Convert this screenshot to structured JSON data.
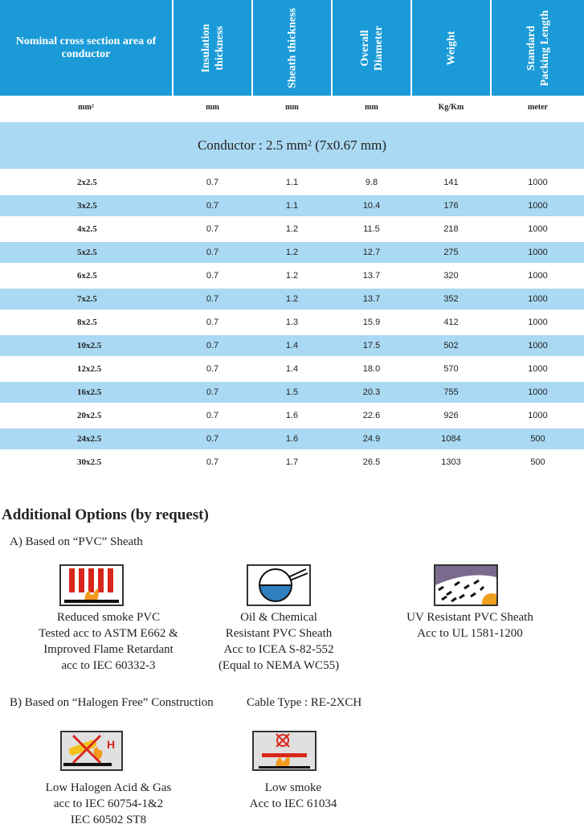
{
  "headers": {
    "col1": "Nominal cross section area of conductor",
    "col2": [
      "Insulation",
      "thickness"
    ],
    "col3": [
      "Sheath thickness"
    ],
    "col4": [
      "Overall",
      "Diameter"
    ],
    "col5": [
      "Weight"
    ],
    "col6": [
      "Standard",
      "Packing Length"
    ]
  },
  "units": {
    "col1": "mm²",
    "col2": "mm",
    "col3": "mm",
    "col4": "mm",
    "col5": "Kg/Km",
    "col6": "meter"
  },
  "banner": "Conductor : 2.5 mm² (7x0.67 mm)",
  "rows": [
    {
      "name": "2x2.5",
      "ins": "0.7",
      "sheath": "1.1",
      "dia": "9.8",
      "weight": "141",
      "len": "1000"
    },
    {
      "name": "3x2.5",
      "ins": "0.7",
      "sheath": "1.1",
      "dia": "10.4",
      "weight": "176",
      "len": "1000"
    },
    {
      "name": "4x2.5",
      "ins": "0.7",
      "sheath": "1.2",
      "dia": "11.5",
      "weight": "218",
      "len": "1000"
    },
    {
      "name": "5x2.5",
      "ins": "0.7",
      "sheath": "1.2",
      "dia": "12.7",
      "weight": "275",
      "len": "1000"
    },
    {
      "name": "6x2.5",
      "ins": "0.7",
      "sheath": "1.2",
      "dia": "13.7",
      "weight": "320",
      "len": "1000"
    },
    {
      "name": "7x2.5",
      "ins": "0.7",
      "sheath": "1.2",
      "dia": "13.7",
      "weight": "352",
      "len": "1000"
    },
    {
      "name": "8x2.5",
      "ins": "0.7",
      "sheath": "1.3",
      "dia": "15.9",
      "weight": "412",
      "len": "1000"
    },
    {
      "name": "10x2.5",
      "ins": "0.7",
      "sheath": "1.4",
      "dia": "17.5",
      "weight": "502",
      "len": "1000"
    },
    {
      "name": "12x2.5",
      "ins": "0.7",
      "sheath": "1.4",
      "dia": "18.0",
      "weight": "570",
      "len": "1000"
    },
    {
      "name": "16x2.5",
      "ins": "0.7",
      "sheath": "1.5",
      "dia": "20.3",
      "weight": "755",
      "len": "1000"
    },
    {
      "name": "20x2.5",
      "ins": "0.7",
      "sheath": "1.6",
      "dia": "22.6",
      "weight": "926",
      "len": "1000"
    },
    {
      "name": "24x2.5",
      "ins": "0.7",
      "sheath": "1.6",
      "dia": "24.9",
      "weight": "1084",
      "len": "500"
    },
    {
      "name": "30x2.5",
      "ins": "0.7",
      "sheath": "1.7",
      "dia": "26.5",
      "weight": "1303",
      "len": "500"
    }
  ],
  "options": {
    "title": "Additional Options (by request)",
    "section_a": "A) Based on “PVC” Sheath",
    "section_b": "B) Based on “Halogen Free” Construction",
    "cable_type": "Cable Type : RE-2XCH",
    "items_a": [
      {
        "icon": "reduced-smoke-icon",
        "lines": [
          "Reduced smoke PVC",
          "Tested acc to ASTM E662 &",
          "Improved Flame Retardant",
          "acc to IEC 60332-3"
        ]
      },
      {
        "icon": "oil-chemical-icon",
        "lines": [
          "Oil & Chemical",
          "Resistant PVC Sheath",
          "Acc to ICEA S-82-552",
          "(Equal to NEMA WC55)"
        ]
      },
      {
        "icon": "uv-resistant-icon",
        "lines": [
          "UV Resistant PVC Sheath",
          "Acc to UL 1581-1200"
        ]
      }
    ],
    "items_b": [
      {
        "icon": "low-halogen-icon",
        "lines": [
          "Low Halogen Acid & Gas",
          "acc to IEC 60754-1&2",
          "IEC 60502 ST8"
        ]
      },
      {
        "icon": "low-smoke-icon",
        "lines": [
          "Low smoke",
          "Acc to IEC 61034"
        ]
      }
    ]
  },
  "colors": {
    "header": "#1a9bd8",
    "shade": "#aad9f3"
  }
}
